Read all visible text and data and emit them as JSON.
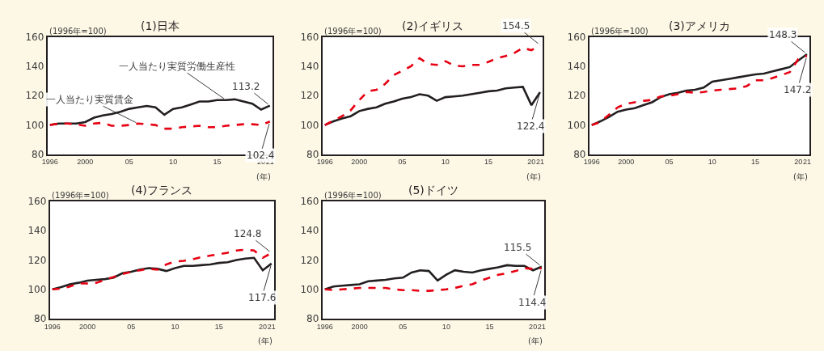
{
  "chart_data": [
    {
      "type": "line",
      "title": "(1)日本",
      "ylabel": "(1996年=100)",
      "xlabel": "(年)",
      "x": [
        1996,
        1997,
        1998,
        1999,
        2000,
        2001,
        2002,
        2003,
        2004,
        2005,
        2006,
        2007,
        2008,
        2009,
        2010,
        2011,
        2012,
        2013,
        2014,
        2015,
        2016,
        2017,
        2018,
        2019,
        2020,
        2021
      ],
      "xlim": [
        1996,
        2021
      ],
      "xticks": [
        1996,
        2000,
        {
          "value": 2005,
          "label": "05"
        },
        {
          "value": 2010,
          "label": "10"
        },
        {
          "value": 2015,
          "label": "15"
        },
        {
          "value": 2020,
          "label": "20"
        },
        {
          "value": 2021,
          "label": "21"
        }
      ],
      "ylim": [
        80,
        160
      ],
      "yticks": [
        80,
        100,
        120,
        140,
        160
      ],
      "series": [
        {
          "color": "#231f20",
          "line_style": "solid",
          "values": [
            100,
            101,
            101,
            101,
            102,
            105,
            106.5,
            107.5,
            109,
            111,
            112,
            113,
            112,
            107,
            111,
            112,
            114,
            116,
            116,
            117,
            117,
            117.5,
            116,
            114.5,
            110.5,
            113.2
          ]
        },
        {
          "color": "#e60012",
          "line_style": "dashed",
          "values": [
            100,
            101,
            101,
            100.5,
            99.5,
            101,
            101.5,
            99.5,
            99.5,
            100,
            101,
            100.5,
            100,
            97.5,
            97.5,
            98.5,
            99,
            99.5,
            98.5,
            98.5,
            99.5,
            100,
            100.5,
            100.5,
            100,
            102.4
          ]
        }
      ],
      "annotations": [
        {
          "text": "一人当たり実質労働生産性",
          "x": 2016,
          "y": 117
        },
        {
          "text": "一人当たり実質賃金",
          "x": 2006,
          "y": 101
        },
        {
          "text": "113.2",
          "x": 2021,
          "y": 113.2
        },
        {
          "text": "102.4",
          "x": 2021,
          "y": 102.4
        }
      ]
    },
    {
      "type": "line",
      "title": "(2)イギリス",
      "ylabel": "(1996年=100)",
      "xlabel": "(年)",
      "x": [
        1996,
        1997,
        1998,
        1999,
        2000,
        2001,
        2002,
        2003,
        2004,
        2005,
        2006,
        2007,
        2008,
        2009,
        2010,
        2011,
        2012,
        2013,
        2014,
        2015,
        2016,
        2017,
        2018,
        2019,
        2020,
        2021
      ],
      "xlim": [
        1996,
        2021
      ],
      "xticks": [
        1996,
        2000,
        {
          "value": 2005,
          "label": "05"
        },
        {
          "value": 2010,
          "label": "10"
        },
        {
          "value": 2015,
          "label": "15"
        },
        {
          "value": 2020,
          "label": "20"
        },
        {
          "value": 2021,
          "label": "21"
        }
      ],
      "ylim": [
        80,
        160
      ],
      "yticks": [
        80,
        100,
        120,
        140,
        160
      ],
      "series": [
        {
          "color": "#231f20",
          "line_style": "solid",
          "values": [
            100,
            102.5,
            104.5,
            106,
            109.5,
            111,
            112,
            114.5,
            116,
            118,
            119,
            121,
            120,
            116.5,
            119,
            119.5,
            120,
            121,
            122,
            123,
            123.5,
            125,
            125.5,
            126,
            113.5,
            122.4
          ]
        },
        {
          "color": "#e60012",
          "line_style": "dashed",
          "values": [
            100,
            103,
            106,
            110,
            117,
            123,
            124,
            128,
            134,
            137,
            140,
            145.5,
            141.5,
            141,
            143.5,
            140.5,
            140,
            141,
            141,
            143,
            145.5,
            147,
            149,
            152.5,
            151,
            154.5
          ]
        }
      ],
      "annotations": [
        {
          "text": "154.5",
          "x": 2021,
          "y": 154.5
        },
        {
          "text": "122.4",
          "x": 2021,
          "y": 122.4
        }
      ]
    },
    {
      "type": "line",
      "title": "(3)アメリカ",
      "ylabel": "(1996年=100)",
      "xlabel": "(年)",
      "x": [
        1996,
        1997,
        1998,
        1999,
        2000,
        2001,
        2002,
        2003,
        2004,
        2005,
        2006,
        2007,
        2008,
        2009,
        2010,
        2011,
        2012,
        2013,
        2014,
        2015,
        2016,
        2017,
        2018,
        2019,
        2020,
        2021
      ],
      "xlim": [
        1996,
        2021
      ],
      "xticks": [
        1996,
        2000,
        {
          "value": 2005,
          "label": "05"
        },
        {
          "value": 2010,
          "label": "10"
        },
        {
          "value": 2015,
          "label": "15"
        },
        {
          "value": 2020,
          "label": "20"
        },
        {
          "value": 2021,
          "label": "21"
        }
      ],
      "ylim": [
        80,
        160
      ],
      "yticks": [
        80,
        100,
        120,
        140,
        160
      ],
      "series": [
        {
          "color": "#231f20",
          "line_style": "solid",
          "values": [
            100,
            102.5,
            105.5,
            109,
            110.5,
            111.5,
            113.5,
            115.5,
            119,
            121,
            122,
            123.5,
            124,
            125.5,
            129.5,
            130.5,
            131.5,
            132.5,
            133.5,
            134.5,
            135,
            136.5,
            138,
            139.5,
            144,
            148.3
          ]
        },
        {
          "color": "#e60012",
          "line_style": "dashed",
          "values": [
            100,
            102,
            107,
            112,
            114.5,
            115.5,
            116.5,
            117,
            119.5,
            120,
            121,
            122.5,
            122,
            122.5,
            123.5,
            124,
            124.5,
            125,
            126.5,
            130.5,
            130.5,
            132,
            134,
            136,
            145,
            147.2
          ]
        }
      ],
      "annotations": [
        {
          "text": "148.3",
          "x": 2021,
          "y": 148.3
        },
        {
          "text": "147.2",
          "x": 2021,
          "y": 147.2
        }
      ]
    },
    {
      "type": "line",
      "title": "(4)フランス",
      "ylabel": "(1996年=100)",
      "xlabel": "(年)",
      "x": [
        1996,
        1997,
        1998,
        1999,
        2000,
        2001,
        2002,
        2003,
        2004,
        2005,
        2006,
        2007,
        2008,
        2009,
        2010,
        2011,
        2012,
        2013,
        2014,
        2015,
        2016,
        2017,
        2018,
        2019,
        2020,
        2021
      ],
      "xlim": [
        1996,
        2021
      ],
      "xticks": [
        1996,
        2000,
        {
          "value": 2005,
          "label": "05"
        },
        {
          "value": 2010,
          "label": "10"
        },
        {
          "value": 2015,
          "label": "15"
        },
        {
          "value": 2020,
          "label": "20"
        },
        {
          "value": 2021,
          "label": "21"
        }
      ],
      "ylim": [
        80,
        160
      ],
      "yticks": [
        80,
        100,
        120,
        140,
        160
      ],
      "series": [
        {
          "color": "#231f20",
          "line_style": "solid",
          "values": [
            100,
            101.5,
            103.5,
            104.5,
            106,
            106.5,
            107,
            108,
            111,
            112,
            113.5,
            114.5,
            114,
            112.5,
            114.5,
            116,
            116,
            116.5,
            117,
            118,
            118.5,
            120,
            121,
            121.5,
            113,
            117.6
          ]
        },
        {
          "color": "#e60012",
          "line_style": "dashed",
          "values": [
            100,
            100.5,
            102,
            104,
            104,
            104.5,
            106.5,
            108.5,
            110.5,
            112,
            113,
            114,
            113.5,
            117,
            119,
            119.5,
            120.5,
            122,
            123,
            124,
            125,
            126.5,
            127,
            126.5,
            121.5,
            124.8
          ]
        }
      ],
      "annotations": [
        {
          "text": "124.8",
          "x": 2021,
          "y": 124.8
        },
        {
          "text": "117.6",
          "x": 2021,
          "y": 117.6
        }
      ]
    },
    {
      "type": "line",
      "title": "(5)ドイツ",
      "ylabel": "(1996年=100)",
      "xlabel": "(年)",
      "x": [
        1996,
        1997,
        1998,
        1999,
        2000,
        2001,
        2002,
        2003,
        2004,
        2005,
        2006,
        2007,
        2008,
        2009,
        2010,
        2011,
        2012,
        2013,
        2014,
        2015,
        2016,
        2017,
        2018,
        2019,
        2020,
        2021
      ],
      "xlim": [
        1996,
        2021
      ],
      "xticks": [
        1996,
        2000,
        {
          "value": 2005,
          "label": "05"
        },
        {
          "value": 2010,
          "label": "10"
        },
        {
          "value": 2015,
          "label": "15"
        },
        {
          "value": 2020,
          "label": "20"
        },
        {
          "value": 2021,
          "label": "21"
        }
      ],
      "ylim": [
        80,
        160
      ],
      "yticks": [
        80,
        100,
        120,
        140,
        160
      ],
      "series": [
        {
          "color": "#231f20",
          "line_style": "solid",
          "values": [
            100,
            102,
            102.5,
            103,
            103.5,
            105.5,
            106,
            106.5,
            107.5,
            108,
            111.5,
            113,
            112.5,
            106,
            110,
            113,
            112,
            111.5,
            113,
            114,
            115,
            116.5,
            116,
            116,
            113,
            115.5
          ]
        },
        {
          "color": "#e60012",
          "line_style": "dashed",
          "values": [
            100,
            99.5,
            100,
            100.5,
            101,
            101,
            101,
            101,
            100,
            99.5,
            99.5,
            99,
            99,
            99.5,
            100,
            101,
            102.5,
            103.5,
            106,
            108,
            110,
            111,
            112.5,
            114.5,
            114,
            114.4
          ]
        }
      ],
      "annotations": [
        {
          "text": "115.5",
          "x": 2021,
          "y": 115.5
        },
        {
          "text": "114.4",
          "x": 2021,
          "y": 114.4
        }
      ]
    }
  ]
}
